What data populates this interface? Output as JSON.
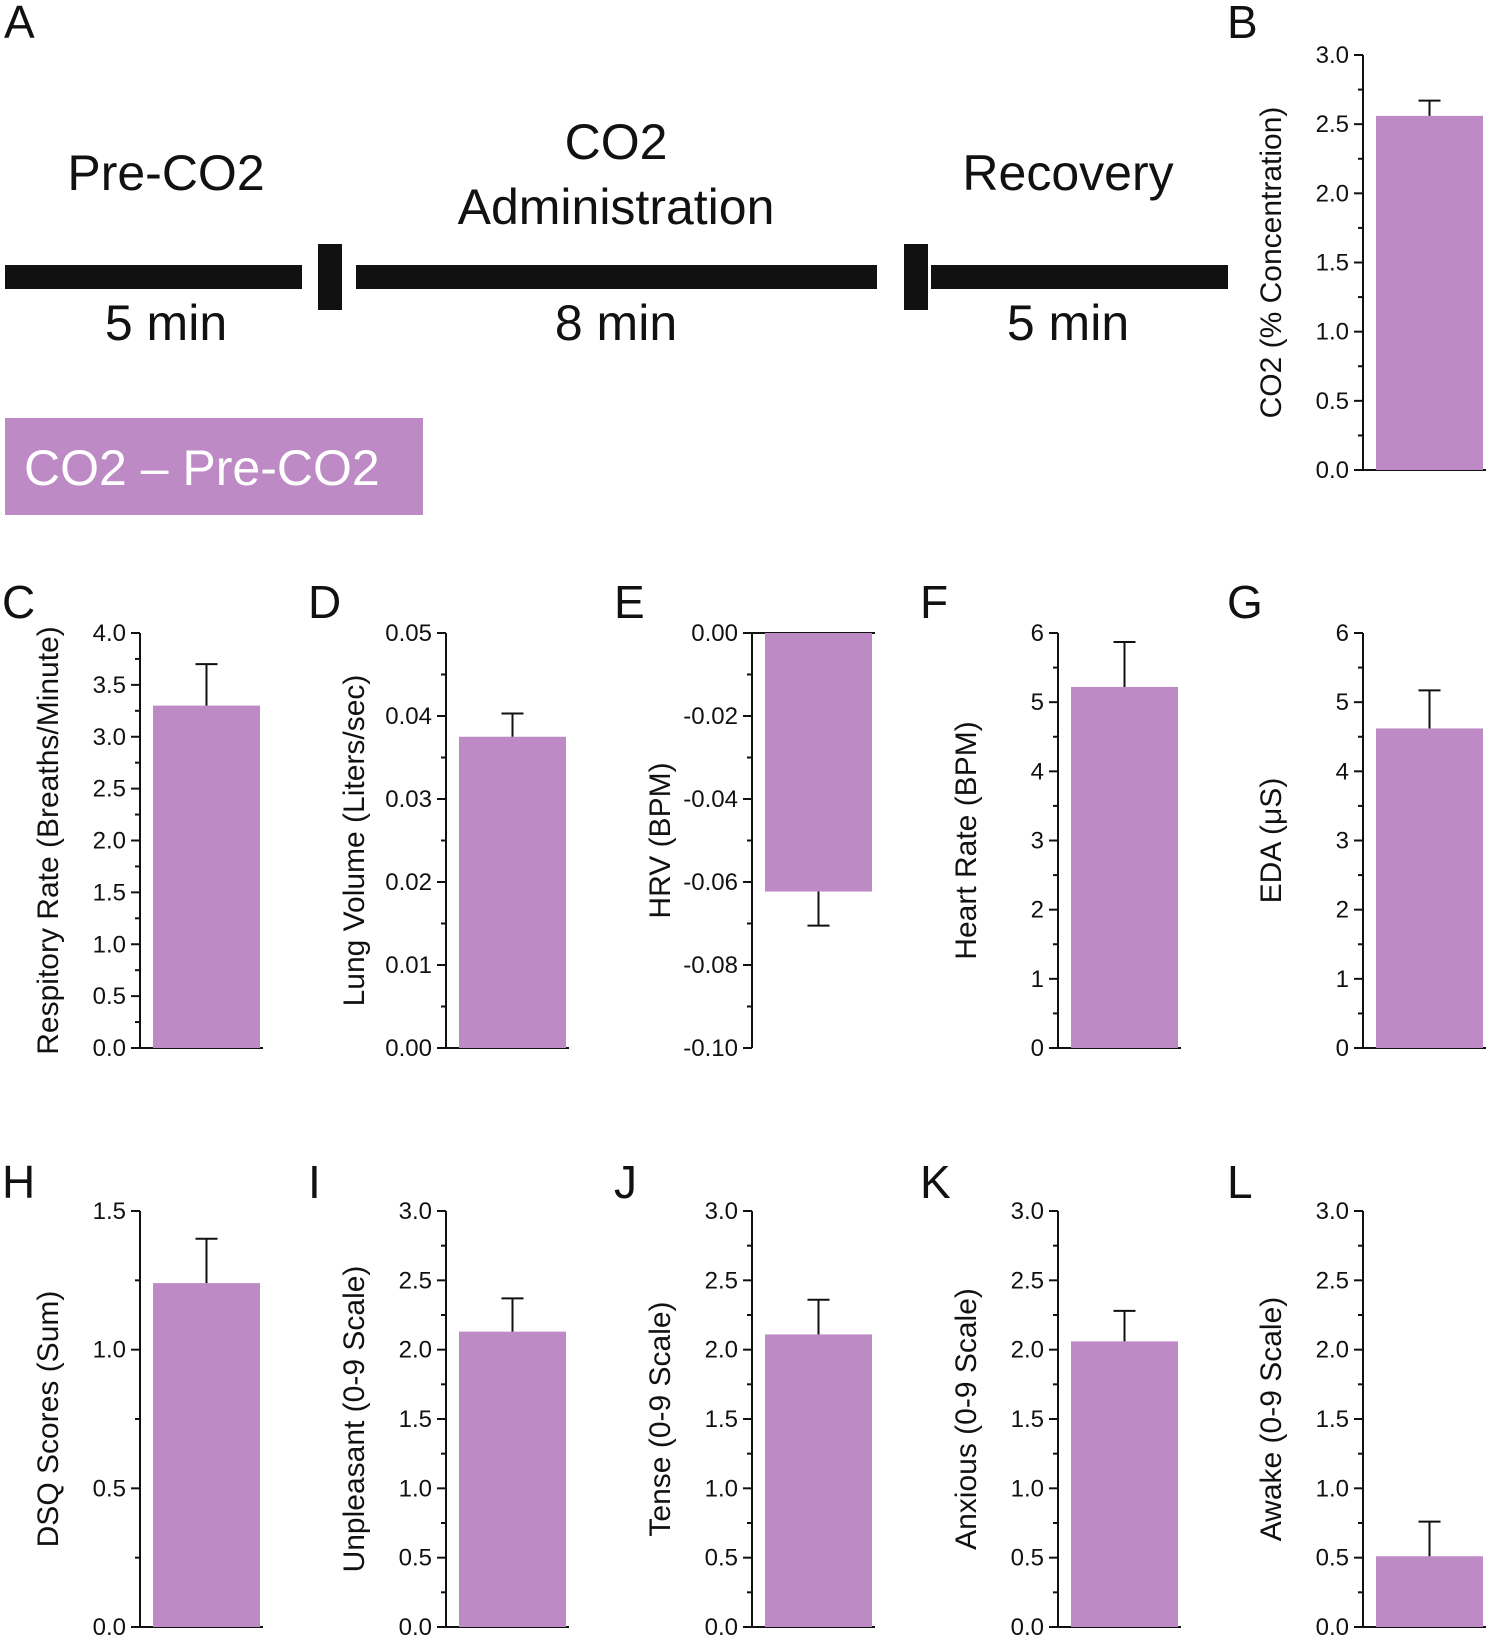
{
  "colors": {
    "bar": "#bd8ac5",
    "ink": "#111111",
    "legend_text": "#ffffff"
  },
  "timeline": {
    "panel_label": "A",
    "phases": [
      {
        "title_lines": [
          "Pre-CO2"
        ],
        "duration": "5 min"
      },
      {
        "title_lines": [
          "CO2",
          "Administration"
        ],
        "duration": "8 min"
      },
      {
        "title_lines": [
          "Recovery"
        ],
        "duration": "5 min"
      }
    ],
    "legend": "CO2 – Pre-CO2"
  },
  "chart_data": [
    {
      "panel": "B",
      "type": "bar",
      "ylabel": "CO2 (% Concentration)",
      "ylim": [
        0,
        3.0
      ],
      "ticks": [
        "0.0",
        "0.5",
        "1.0",
        "1.5",
        "2.0",
        "2.5",
        "3.0"
      ],
      "value": 2.56,
      "error": 0.11
    },
    {
      "panel": "C",
      "type": "bar",
      "ylabel": "Respitory Rate (Breaths/Minute)",
      "ylim": [
        0,
        4.0
      ],
      "ticks": [
        "0.0",
        "0.5",
        "1.0",
        "1.5",
        "2.0",
        "2.5",
        "3.0",
        "3.5",
        "4.0"
      ],
      "value": 3.3,
      "error": 0.4
    },
    {
      "panel": "D",
      "type": "bar",
      "ylabel": "Lung Volume (Liters/sec)",
      "ylim": [
        0,
        0.05
      ],
      "ticks": [
        "0.00",
        "0.01",
        "0.02",
        "0.03",
        "0.04",
        "0.05"
      ],
      "value": 0.0375,
      "error": 0.0028
    },
    {
      "panel": "E",
      "type": "bar",
      "ylabel": "HRV (BPM)",
      "ylim": [
        -0.1,
        0.0
      ],
      "ticks": [
        "-0.10",
        "-0.08",
        "-0.06",
        "-0.04",
        "-0.02",
        "0.00"
      ],
      "value": -0.0623,
      "error": 0.0082
    },
    {
      "panel": "F",
      "type": "bar",
      "ylabel": "Heart Rate (BPM)",
      "ylim": [
        0,
        6
      ],
      "ticks": [
        "0",
        "1",
        "2",
        "3",
        "4",
        "5",
        "6"
      ],
      "value": 5.22,
      "error": 0.65
    },
    {
      "panel": "G",
      "type": "bar",
      "ylabel": "EDA (μS)",
      "ylim": [
        0,
        6
      ],
      "ticks": [
        "0",
        "1",
        "2",
        "3",
        "4",
        "5",
        "6"
      ],
      "value": 4.62,
      "error": 0.55
    },
    {
      "panel": "H",
      "type": "bar",
      "ylabel": "DSQ Scores (Sum)",
      "ylim": [
        0,
        1.5
      ],
      "ticks": [
        "0.0",
        "0.5",
        "1.0",
        "1.5"
      ],
      "value": 1.24,
      "error": 0.16
    },
    {
      "panel": "I",
      "type": "bar",
      "ylabel": "Unpleasant (0-9 Scale)",
      "ylim": [
        0,
        3.0
      ],
      "ticks": [
        "0.0",
        "0.5",
        "1.0",
        "1.5",
        "2.0",
        "2.5",
        "3.0"
      ],
      "value": 2.13,
      "error": 0.24
    },
    {
      "panel": "J",
      "type": "bar",
      "ylabel": "Tense (0-9 Scale)",
      "ylim": [
        0,
        3.0
      ],
      "ticks": [
        "0.0",
        "0.5",
        "1.0",
        "1.5",
        "2.0",
        "2.5",
        "3.0"
      ],
      "value": 2.11,
      "error": 0.25
    },
    {
      "panel": "K",
      "type": "bar",
      "ylabel": "Anxious (0-9 Scale)",
      "ylim": [
        0,
        3.0
      ],
      "ticks": [
        "0.0",
        "0.5",
        "1.0",
        "1.5",
        "2.0",
        "2.5",
        "3.0"
      ],
      "value": 2.06,
      "error": 0.22
    },
    {
      "panel": "L",
      "type": "bar",
      "ylabel": "Awake (0-9 Scale)",
      "ylim": [
        0,
        3.0
      ],
      "ticks": [
        "0.0",
        "0.5",
        "1.0",
        "1.5",
        "2.0",
        "2.5",
        "3.0"
      ],
      "value": 0.51,
      "error": 0.25
    }
  ]
}
